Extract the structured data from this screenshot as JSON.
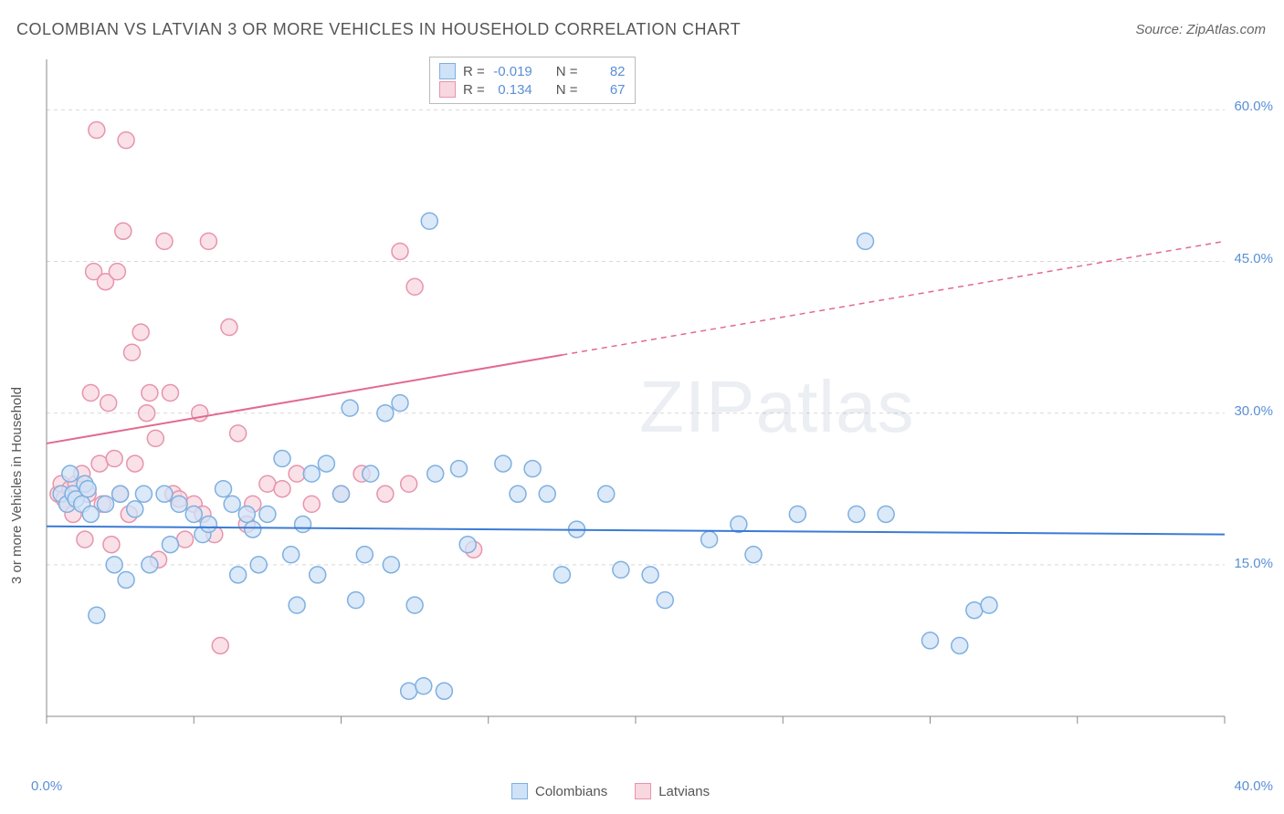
{
  "title": "COLOMBIAN VS LATVIAN 3 OR MORE VEHICLES IN HOUSEHOLD CORRELATION CHART",
  "source": "Source: ZipAtlas.com",
  "y_axis_label": "3 or more Vehicles in Household",
  "watermark": "ZIPatlas",
  "chart": {
    "type": "scatter",
    "background_color": "#ffffff",
    "grid_color": "#d8d8d8",
    "axis_color": "#888888",
    "xlim": [
      0,
      40
    ],
    "ylim": [
      0,
      65
    ],
    "x_ticks": [
      0,
      5,
      10,
      15,
      20,
      25,
      30,
      35,
      40
    ],
    "y_gridlines": [
      15,
      30,
      45,
      60
    ],
    "x_tick_labels": {
      "0": "0.0%",
      "40": "40.0%"
    },
    "y_tick_labels": {
      "15": "15.0%",
      "30": "30.0%",
      "45": "45.0%",
      "60": "60.0%"
    },
    "marker_radius": 9,
    "marker_stroke_width": 1.5,
    "trend_line_width": 2
  },
  "series": {
    "colombians": {
      "label": "Colombians",
      "fill": "#cfe2f7",
      "stroke": "#7fb0e0",
      "R": "-0.019",
      "N": "82",
      "trend_color": "#3a7bd5",
      "trend": {
        "x1": 0,
        "y1": 18.8,
        "x2": 40,
        "y2": 18.0
      },
      "points": [
        [
          0.5,
          22
        ],
        [
          0.7,
          21
        ],
        [
          0.8,
          24
        ],
        [
          0.9,
          22
        ],
        [
          1.0,
          21.5
        ],
        [
          1.2,
          21
        ],
        [
          1.3,
          23
        ],
        [
          1.4,
          22.5
        ],
        [
          1.5,
          20
        ],
        [
          1.7,
          10
        ],
        [
          2.0,
          21
        ],
        [
          2.3,
          15
        ],
        [
          2.5,
          22
        ],
        [
          2.7,
          13.5
        ],
        [
          3.0,
          20.5
        ],
        [
          3.3,
          22
        ],
        [
          3.5,
          15
        ],
        [
          4.0,
          22
        ],
        [
          4.2,
          17
        ],
        [
          4.5,
          21
        ],
        [
          5.0,
          20
        ],
        [
          5.3,
          18
        ],
        [
          5.5,
          19
        ],
        [
          6.0,
          22.5
        ],
        [
          6.3,
          21
        ],
        [
          6.5,
          14
        ],
        [
          6.8,
          20
        ],
        [
          7.0,
          18.5
        ],
        [
          7.2,
          15
        ],
        [
          7.5,
          20
        ],
        [
          8.0,
          25.5
        ],
        [
          8.3,
          16
        ],
        [
          8.5,
          11
        ],
        [
          8.7,
          19
        ],
        [
          9.0,
          24
        ],
        [
          9.2,
          14
        ],
        [
          9.5,
          25
        ],
        [
          10.0,
          22
        ],
        [
          10.3,
          30.5
        ],
        [
          10.5,
          11.5
        ],
        [
          10.8,
          16
        ],
        [
          11.0,
          24
        ],
        [
          11.5,
          30
        ],
        [
          11.7,
          15
        ],
        [
          12.0,
          31
        ],
        [
          12.3,
          2.5
        ],
        [
          12.5,
          11
        ],
        [
          12.8,
          3
        ],
        [
          13.0,
          49
        ],
        [
          13.2,
          24
        ],
        [
          13.5,
          2.5
        ],
        [
          14.0,
          24.5
        ],
        [
          14.3,
          17
        ],
        [
          15.5,
          25
        ],
        [
          16.0,
          22
        ],
        [
          16.5,
          24.5
        ],
        [
          17.0,
          22
        ],
        [
          17.5,
          14
        ],
        [
          18.0,
          18.5
        ],
        [
          19.0,
          22
        ],
        [
          19.5,
          14.5
        ],
        [
          20.5,
          14
        ],
        [
          21.0,
          11.5
        ],
        [
          22.5,
          17.5
        ],
        [
          23.5,
          19
        ],
        [
          24.0,
          16
        ],
        [
          25.5,
          20
        ],
        [
          27.5,
          20
        ],
        [
          27.8,
          47
        ],
        [
          28.5,
          20
        ],
        [
          30.0,
          7.5
        ],
        [
          31.0,
          7
        ],
        [
          31.5,
          10.5
        ],
        [
          32.0,
          11
        ]
      ]
    },
    "latvians": {
      "label": "Latvians",
      "fill": "#f8d7df",
      "stroke": "#e794ac",
      "R": "0.134",
      "N": "67",
      "trend_color": "#e26a8f",
      "trend": {
        "x1": 0,
        "y1": 27,
        "x2": 40,
        "y2": 47
      },
      "trend_solid_until": 17.5,
      "points": [
        [
          0.4,
          22
        ],
        [
          0.5,
          23
        ],
        [
          0.6,
          21.5
        ],
        [
          0.7,
          21
        ],
        [
          0.8,
          22.5
        ],
        [
          0.9,
          20
        ],
        [
          1.0,
          23
        ],
        [
          1.2,
          24
        ],
        [
          1.3,
          17.5
        ],
        [
          1.4,
          22
        ],
        [
          1.5,
          32
        ],
        [
          1.6,
          44
        ],
        [
          1.7,
          58
        ],
        [
          1.8,
          25
        ],
        [
          1.9,
          21
        ],
        [
          2.0,
          43
        ],
        [
          2.1,
          31
        ],
        [
          2.2,
          17
        ],
        [
          2.3,
          25.5
        ],
        [
          2.4,
          44
        ],
        [
          2.5,
          22
        ],
        [
          2.6,
          48
        ],
        [
          2.7,
          57
        ],
        [
          2.8,
          20
        ],
        [
          2.9,
          36
        ],
        [
          3.0,
          25
        ],
        [
          3.2,
          38
        ],
        [
          3.4,
          30
        ],
        [
          3.5,
          32
        ],
        [
          3.7,
          27.5
        ],
        [
          3.8,
          15.5
        ],
        [
          4.0,
          47
        ],
        [
          4.2,
          32
        ],
        [
          4.3,
          22
        ],
        [
          4.5,
          21.5
        ],
        [
          4.7,
          17.5
        ],
        [
          5.0,
          21
        ],
        [
          5.2,
          30
        ],
        [
          5.3,
          20
        ],
        [
          5.5,
          47
        ],
        [
          5.7,
          18
        ],
        [
          5.9,
          7
        ],
        [
          6.2,
          38.5
        ],
        [
          6.5,
          28
        ],
        [
          6.8,
          19
        ],
        [
          7.0,
          21
        ],
        [
          7.5,
          23
        ],
        [
          8.0,
          22.5
        ],
        [
          8.5,
          24
        ],
        [
          9.0,
          21
        ],
        [
          10.0,
          22
        ],
        [
          10.7,
          24
        ],
        [
          11.5,
          22
        ],
        [
          12.0,
          46
        ],
        [
          12.3,
          23
        ],
        [
          12.5,
          42.5
        ],
        [
          14.5,
          16.5
        ]
      ]
    }
  },
  "stats_box": {
    "R_label": "R =",
    "N_label": "N ="
  },
  "legend": {
    "colombians": "Colombians",
    "latvians": "Latvians"
  }
}
